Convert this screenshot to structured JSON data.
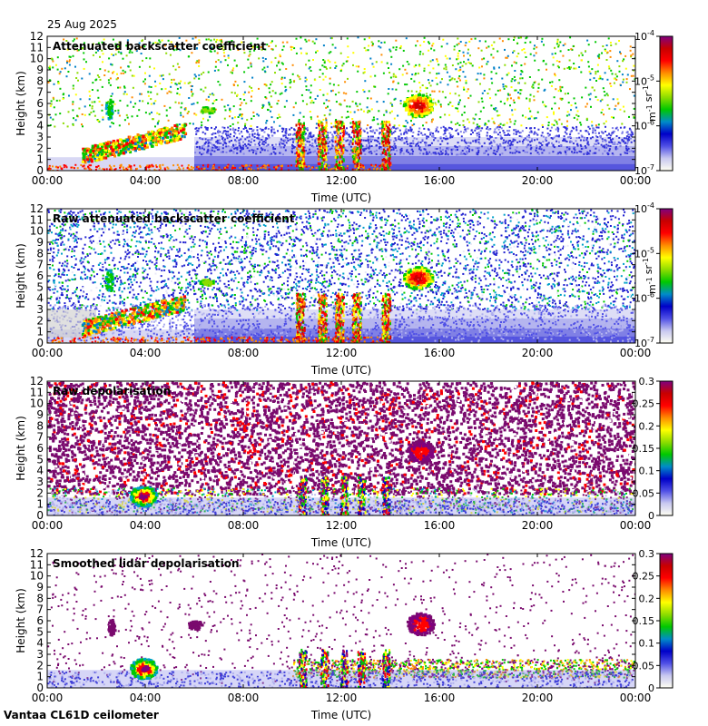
{
  "header": {
    "date": "25 Aug 2025"
  },
  "footer": {
    "instrument": "Vantaa CL61D ceilometer"
  },
  "colors": {
    "colormap": [
      "#fffff2",
      "#c8c8f0",
      "#5050e6",
      "#0000c8",
      "#008cc8",
      "#00c800",
      "#8cdc00",
      "#ffff00",
      "#ff8c00",
      "#ff0000",
      "#c80000",
      "#800080"
    ],
    "background_noise_raw": "#7070e8",
    "depol_noise": "#7a0a6e"
  },
  "chart_data": [
    {
      "type": "heatmap",
      "title": "Attenuated backscatter coefficient",
      "xlabel": "Time (UTC)",
      "ylabel": "Height (km)",
      "x_ticks": [
        "00:00",
        "04:00",
        "08:00",
        "12:00",
        "16:00",
        "20:00",
        "00:00"
      ],
      "y_ticks": [
        "0",
        "1",
        "2",
        "3",
        "4",
        "5",
        "6",
        "7",
        "8",
        "9",
        "10",
        "11",
        "12"
      ],
      "xlim_hours": [
        0,
        24
      ],
      "ylim_km": [
        0,
        12
      ],
      "colorbar": {
        "scale": "log",
        "range": [
          1e-07,
          0.0001
        ],
        "ticks": [
          "10-7",
          "10-6",
          "10-5",
          "10-4"
        ],
        "unit": "m-1 sr-1"
      },
      "features": [
        {
          "name": "boundary-layer aerosol",
          "t_start": 0,
          "t_end": 24,
          "h_top_km": 1.5
        },
        {
          "name": "low cloud",
          "t_start": 1.5,
          "t_end": 5.5,
          "h_km": [
            0.8,
            3.5
          ]
        },
        {
          "name": "elevated cloud",
          "t_start": 14.8,
          "t_end": 15.8,
          "h_km": [
            4.5,
            7
          ]
        }
      ]
    },
    {
      "type": "heatmap",
      "title": "Raw attenuated backscatter coefficient",
      "xlabel": "Time (UTC)",
      "ylabel": "Height (km)",
      "x_ticks": [
        "00:00",
        "04:00",
        "08:00",
        "12:00",
        "16:00",
        "20:00",
        "00:00"
      ],
      "y_ticks": [
        "0",
        "1",
        "2",
        "3",
        "4",
        "5",
        "6",
        "7",
        "8",
        "9",
        "10",
        "11",
        "12"
      ],
      "xlim_hours": [
        0,
        24
      ],
      "ylim_km": [
        0,
        12
      ],
      "colorbar": {
        "scale": "log",
        "range": [
          1e-07,
          0.0001
        ],
        "ticks": [
          "10-7",
          "10-6",
          "10-5",
          "10-4"
        ],
        "unit": "m-1 sr-1"
      }
    },
    {
      "type": "heatmap",
      "title": "Raw depolarisation",
      "xlabel": "Time (UTC)",
      "ylabel": "Height (km)",
      "x_ticks": [
        "00:00",
        "04:00",
        "08:00",
        "12:00",
        "16:00",
        "20:00",
        "00:00"
      ],
      "y_ticks": [
        "0",
        "1",
        "2",
        "3",
        "4",
        "5",
        "6",
        "7",
        "8",
        "9",
        "10",
        "11",
        "12"
      ],
      "xlim_hours": [
        0,
        24
      ],
      "ylim_km": [
        0,
        12
      ],
      "colorbar": {
        "scale": "linear",
        "range": [
          0,
          0.3
        ],
        "ticks": [
          "0",
          "0.05",
          "0.1",
          "0.15",
          "0.2",
          "0.25",
          "0.3"
        ]
      }
    },
    {
      "type": "heatmap",
      "title": "Smoothed lidar depolarisation",
      "xlabel": "Time (UTC)",
      "ylabel": "Height (km)",
      "x_ticks": [
        "00:00",
        "04:00",
        "08:00",
        "12:00",
        "16:00",
        "20:00",
        "00:00"
      ],
      "y_ticks": [
        "0",
        "1",
        "2",
        "3",
        "4",
        "5",
        "6",
        "7",
        "8",
        "9",
        "10",
        "11",
        "12"
      ],
      "xlim_hours": [
        0,
        24
      ],
      "ylim_km": [
        0,
        12
      ],
      "colorbar": {
        "scale": "linear",
        "range": [
          0,
          0.3
        ],
        "ticks": [
          "0",
          "0.05",
          "0.1",
          "0.15",
          "0.2",
          "0.25",
          "0.3"
        ]
      }
    }
  ]
}
